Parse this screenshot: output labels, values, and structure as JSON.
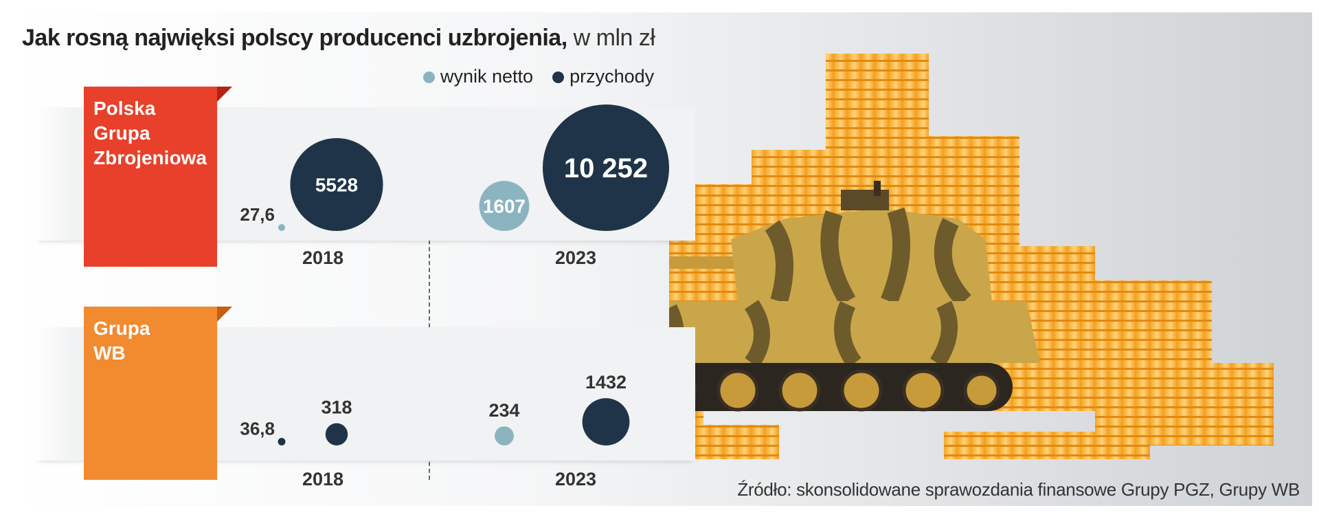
{
  "title": {
    "main": "Jak rosną najwięksi polscy producenci uzbrojenia,",
    "unit": "w mln zł"
  },
  "legend": [
    {
      "label": "wynik netto",
      "color": "#8cb4c0"
    },
    {
      "label": "przychody",
      "color": "#1f3448"
    }
  ],
  "source": "Źródło: skonsolidowane sprawozdania finansowe Grupy PGZ, Grupy WB",
  "chart_data": {
    "type": "scatter",
    "subtype": "bubble",
    "categories": [
      "2018",
      "2023"
    ],
    "groups": [
      {
        "name": "Polska Grupa Zbrojeniowa",
        "name_lines": [
          "Polska",
          "Grupa",
          "Zbrojeniowa"
        ],
        "color": "#e8402a",
        "values": {
          "wynik netto": {
            "2018": 27.6,
            "2023": 1607
          },
          "przychody": {
            "2018": 5528,
            "2023": 10252
          }
        },
        "labels": {
          "wynik netto": {
            "2018": "27,6",
            "2023": "1607"
          },
          "przychody": {
            "2018": "5528",
            "2023": "10 252"
          }
        }
      },
      {
        "name": "Grupa WB",
        "name_lines": [
          "Grupa",
          "WB"
        ],
        "color": "#f28a30",
        "values": {
          "wynik netto": {
            "2018": 36.8,
            "2023": 234
          },
          "przychody": {
            "2018": 318,
            "2023": 1432
          }
        },
        "labels": {
          "wynik netto": {
            "2018": "36,8",
            "2023": "234"
          },
          "przychody": {
            "2018": "318",
            "2023": "1432"
          }
        }
      }
    ],
    "series_colors": {
      "wynik netto": "#8cb4c0",
      "przychody": "#1f3448"
    }
  }
}
